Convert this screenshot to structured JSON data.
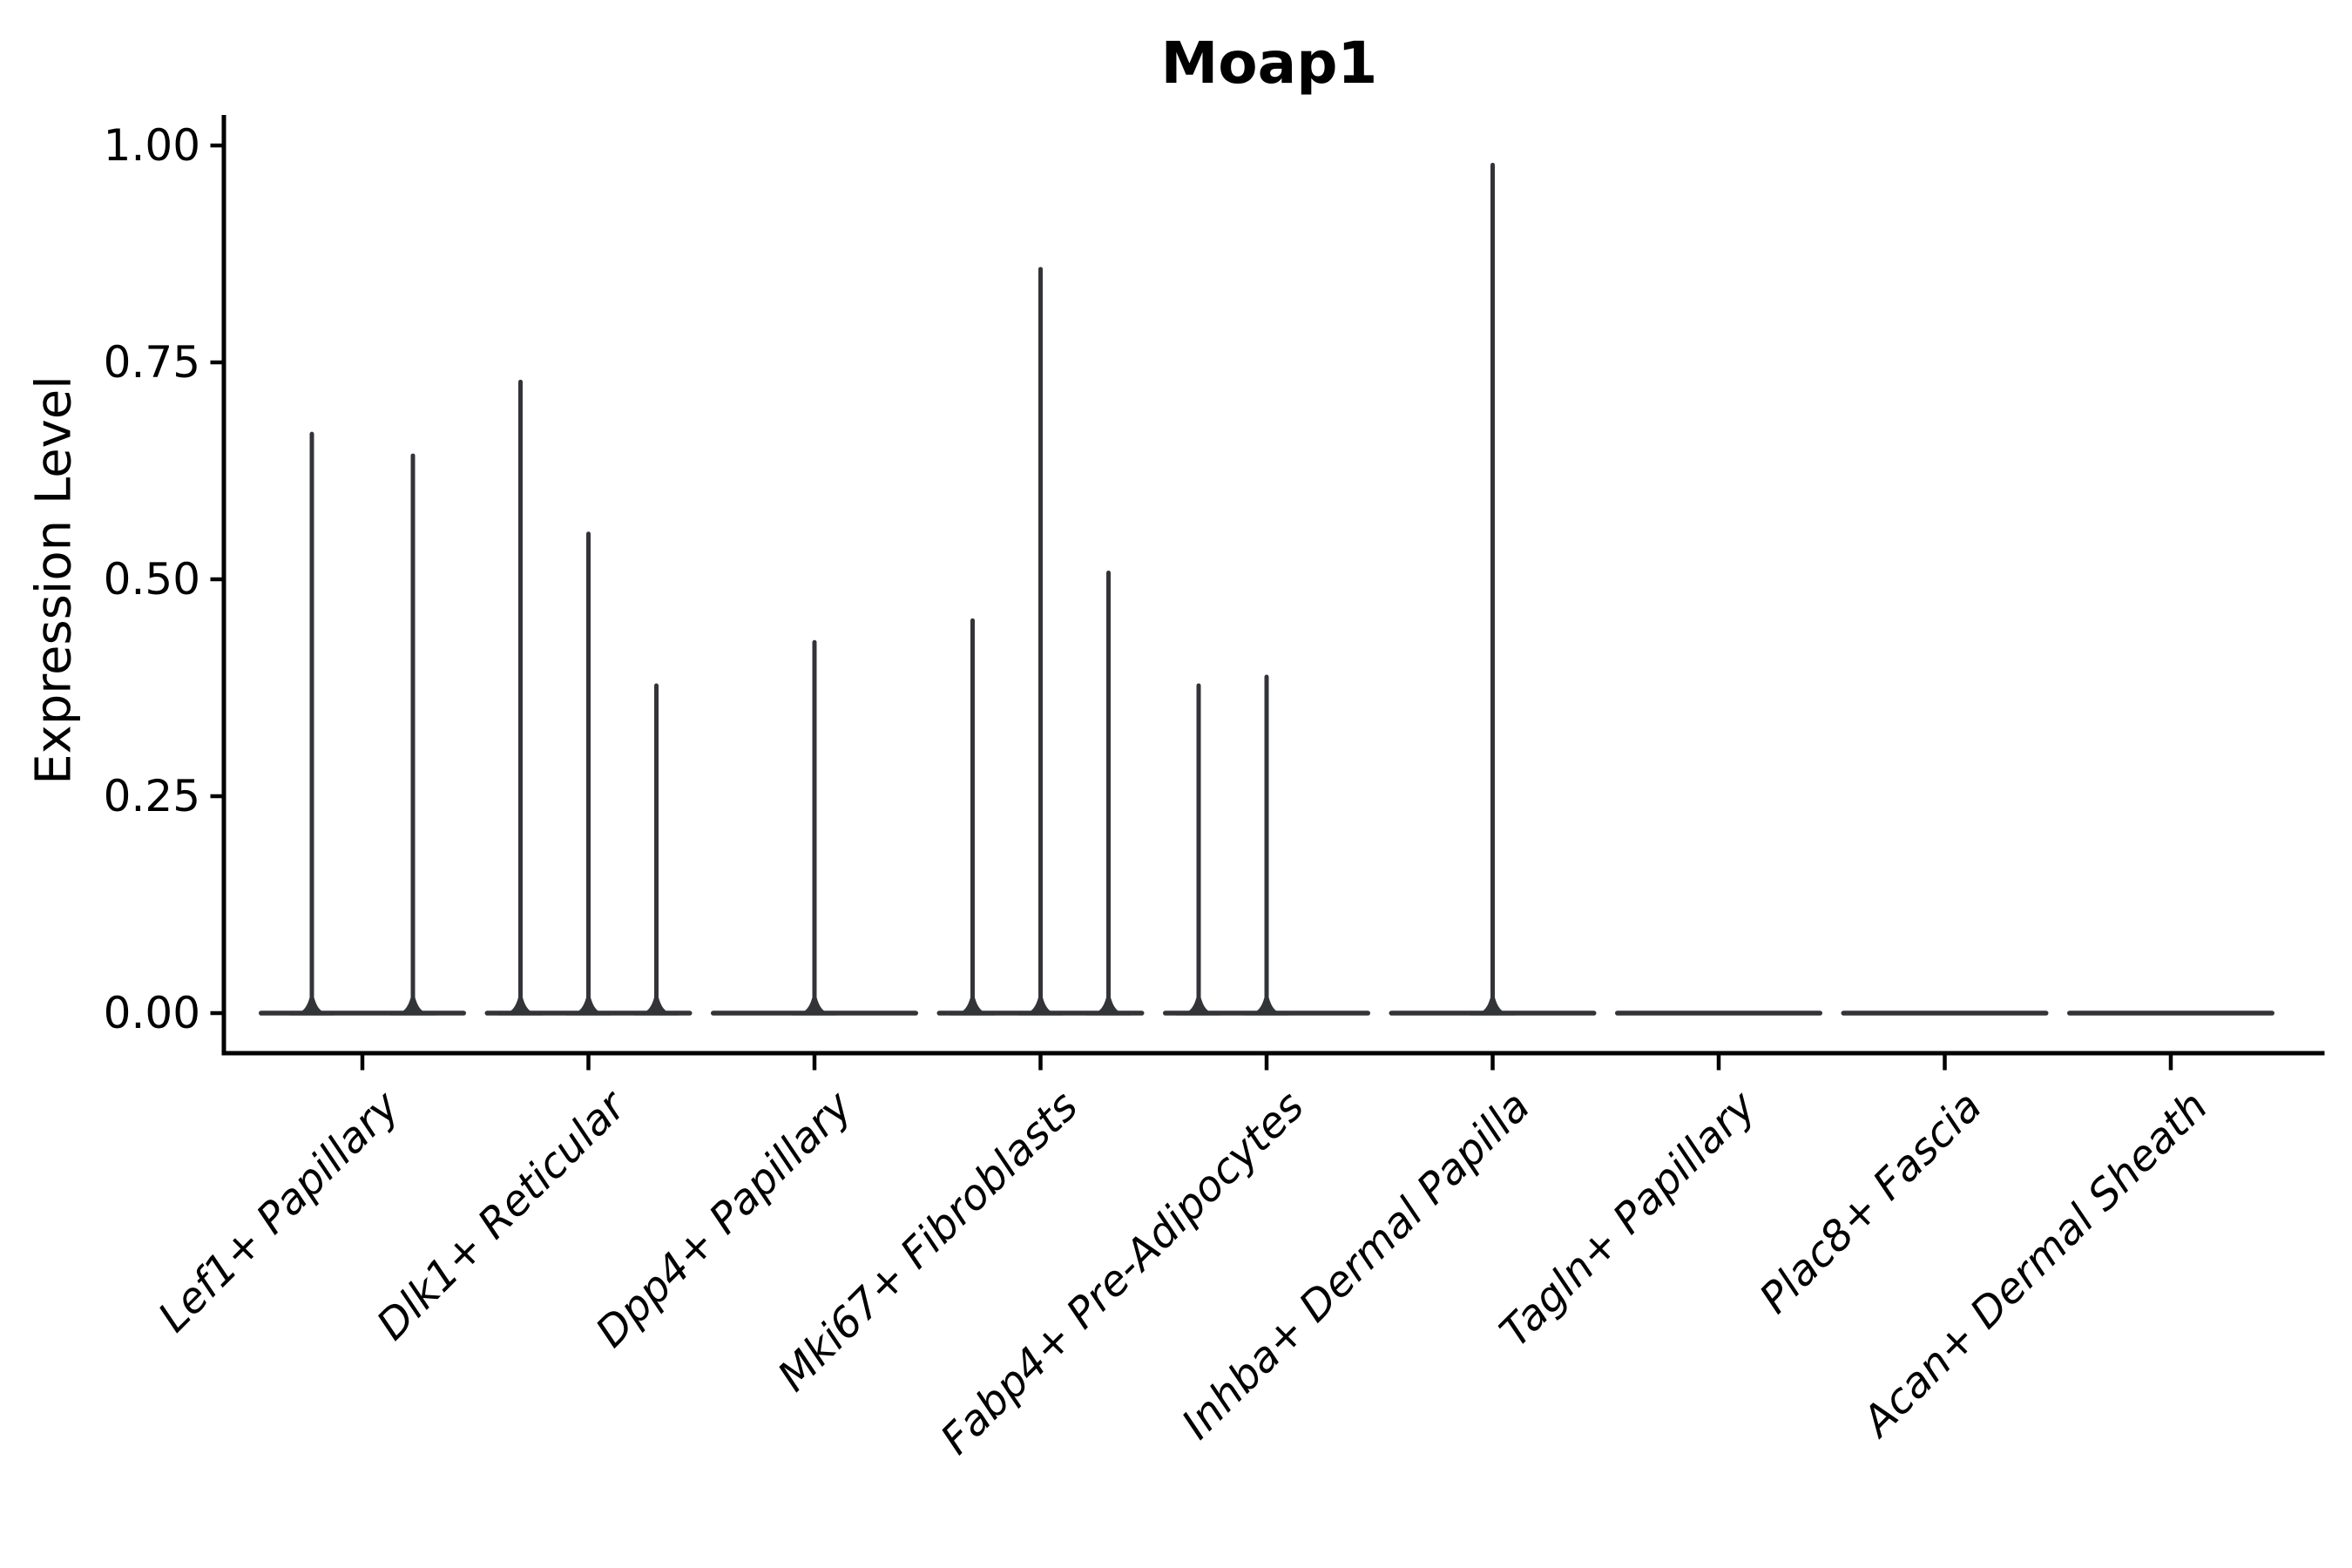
{
  "chart_data": {
    "type": "violin",
    "title": "Moap1",
    "ylabel": "Expression Level",
    "xlabel": "",
    "ylim": [
      0,
      1.0
    ],
    "grid": "off",
    "legend": "none",
    "y_ticks": [
      {
        "label": "0.00",
        "value": 0.0
      },
      {
        "label": "0.25",
        "value": 0.25
      },
      {
        "label": "0.50",
        "value": 0.5
      },
      {
        "label": "0.75",
        "value": 0.75
      },
      {
        "label": "1.00",
        "value": 1.0
      }
    ],
    "description": "Zero-inflated expression violins: each violin is a flat bar at 0 with a thin density spike rising to its maximum expression value.",
    "categories": [
      {
        "label": "Lef1+ Papillary",
        "spikes": [
          {
            "offset": -58,
            "max": 0.67
          },
          {
            "offset": 58,
            "max": 0.645
          }
        ]
      },
      {
        "label": "Dlk1+ Reticular",
        "spikes": [
          {
            "offset": -78,
            "max": 0.73
          },
          {
            "offset": 0,
            "max": 0.555
          },
          {
            "offset": 78,
            "max": 0.38
          }
        ]
      },
      {
        "label": "Dpp4+ Papillary",
        "spikes": [
          {
            "offset": 0,
            "max": 0.43
          }
        ]
      },
      {
        "label": "Mki67+ Fibroblasts",
        "spikes": [
          {
            "offset": -78,
            "max": 0.455
          },
          {
            "offset": 0,
            "max": 0.86
          },
          {
            "offset": 78,
            "max": 0.51
          }
        ]
      },
      {
        "label": "Fabp4+ Pre-Adipocytes",
        "spikes": [
          {
            "offset": -78,
            "max": 0.38
          },
          {
            "offset": 0,
            "max": 0.39
          }
        ]
      },
      {
        "label": "Inhba+ Dermal Papilla",
        "spikes": [
          {
            "offset": 0,
            "max": 0.98
          }
        ]
      },
      {
        "label": "Tagln+ Papillary",
        "spikes": []
      },
      {
        "label": "Plac8+ Fascia",
        "spikes": []
      },
      {
        "label": "Acan+ Dermal Sheath",
        "spikes": []
      }
    ],
    "colors": {
      "violin": "#333438",
      "axis": "#000000",
      "text": "#000000",
      "background": "#ffffff"
    }
  }
}
